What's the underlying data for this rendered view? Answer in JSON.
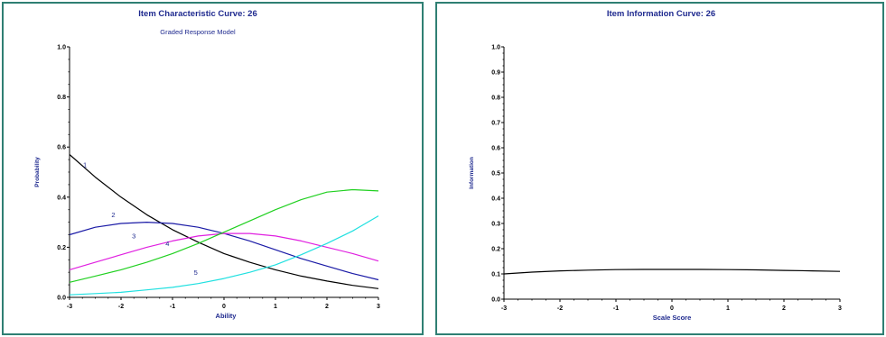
{
  "chart_data": [
    {
      "type": "line",
      "title": "Item Characteristic Curve: 26",
      "subtitle": "Graded Response Model",
      "xlabel": "Ability",
      "ylabel": "Probability",
      "xlim": [
        -3,
        3
      ],
      "ylim": [
        0,
        1.0
      ],
      "xticks": [
        "-3",
        "-2",
        "-1",
        "0",
        "1",
        "2",
        "3"
      ],
      "yticks": [
        "0.0",
        "0.2",
        "0.4",
        "0.6",
        "0.8",
        "1.0"
      ],
      "grid": false,
      "legend": "none",
      "series": [
        {
          "name": "1",
          "color": "#000000",
          "x": [
            -3,
            -2.5,
            -2,
            -1.5,
            -1,
            -0.5,
            0,
            0.5,
            1,
            1.5,
            2,
            2.5,
            3
          ],
          "y": [
            0.57,
            0.48,
            0.4,
            0.33,
            0.27,
            0.22,
            0.175,
            0.14,
            0.11,
            0.085,
            0.065,
            0.048,
            0.035
          ]
        },
        {
          "name": "2",
          "color": "#1a1aa6",
          "x": [
            -3,
            -2.5,
            -2,
            -1.5,
            -1,
            -0.5,
            0,
            0.5,
            1,
            1.5,
            2,
            2.5,
            3
          ],
          "y": [
            0.25,
            0.28,
            0.295,
            0.3,
            0.295,
            0.28,
            0.255,
            0.225,
            0.19,
            0.155,
            0.125,
            0.095,
            0.07
          ]
        },
        {
          "name": "3",
          "color": "#e020e0",
          "x": [
            -3,
            -2.5,
            -2,
            -1.5,
            -1,
            -0.5,
            0,
            0.5,
            1,
            1.5,
            2,
            2.5,
            3
          ],
          "y": [
            0.11,
            0.14,
            0.17,
            0.2,
            0.225,
            0.245,
            0.255,
            0.255,
            0.245,
            0.225,
            0.2,
            0.175,
            0.145
          ]
        },
        {
          "name": "4",
          "color": "#20d020",
          "x": [
            -3,
            -2.5,
            -2,
            -1.5,
            -1,
            -0.5,
            0,
            0.5,
            1,
            1.5,
            2,
            2.5,
            3
          ],
          "y": [
            0.06,
            0.085,
            0.11,
            0.14,
            0.175,
            0.215,
            0.26,
            0.305,
            0.35,
            0.39,
            0.42,
            0.43,
            0.425
          ]
        },
        {
          "name": "5",
          "color": "#20e0e0",
          "x": [
            -3,
            -2.5,
            -2,
            -1.5,
            -1,
            -0.5,
            0,
            0.5,
            1,
            1.5,
            2,
            2.5,
            3
          ],
          "y": [
            0.01,
            0.015,
            0.02,
            0.03,
            0.04,
            0.055,
            0.075,
            0.1,
            0.13,
            0.17,
            0.215,
            0.265,
            0.325
          ]
        }
      ],
      "curve_labels": [
        {
          "text": "1",
          "x": -2.7,
          "y": 0.52
        },
        {
          "text": "2",
          "x": -2.15,
          "y": 0.32
        },
        {
          "text": "3",
          "x": -1.75,
          "y": 0.235
        },
        {
          "text": "4",
          "x": -1.1,
          "y": 0.205
        },
        {
          "text": "5",
          "x": -0.55,
          "y": 0.09
        }
      ]
    },
    {
      "type": "line",
      "title": "Item Information Curve: 26",
      "xlabel": "Scale Score",
      "ylabel": "Information",
      "xlim": [
        -3,
        3
      ],
      "ylim": [
        0,
        1.0
      ],
      "xticks": [
        "-3",
        "-2",
        "-1",
        "0",
        "1",
        "2",
        "3"
      ],
      "yticks": [
        "0.0",
        "0.1",
        "0.2",
        "0.3",
        "0.4",
        "0.5",
        "0.6",
        "0.7",
        "0.8",
        "0.9",
        "1.0"
      ],
      "grid": false,
      "legend": "none",
      "series": [
        {
          "color": "#000000",
          "x": [
            -3,
            -2.5,
            -2,
            -1.5,
            -1,
            -0.5,
            0,
            0.5,
            1,
            1.5,
            2,
            2.5,
            3
          ],
          "y": [
            0.1,
            0.107,
            0.112,
            0.115,
            0.117,
            0.118,
            0.118,
            0.118,
            0.117,
            0.116,
            0.114,
            0.112,
            0.11
          ]
        }
      ]
    }
  ]
}
